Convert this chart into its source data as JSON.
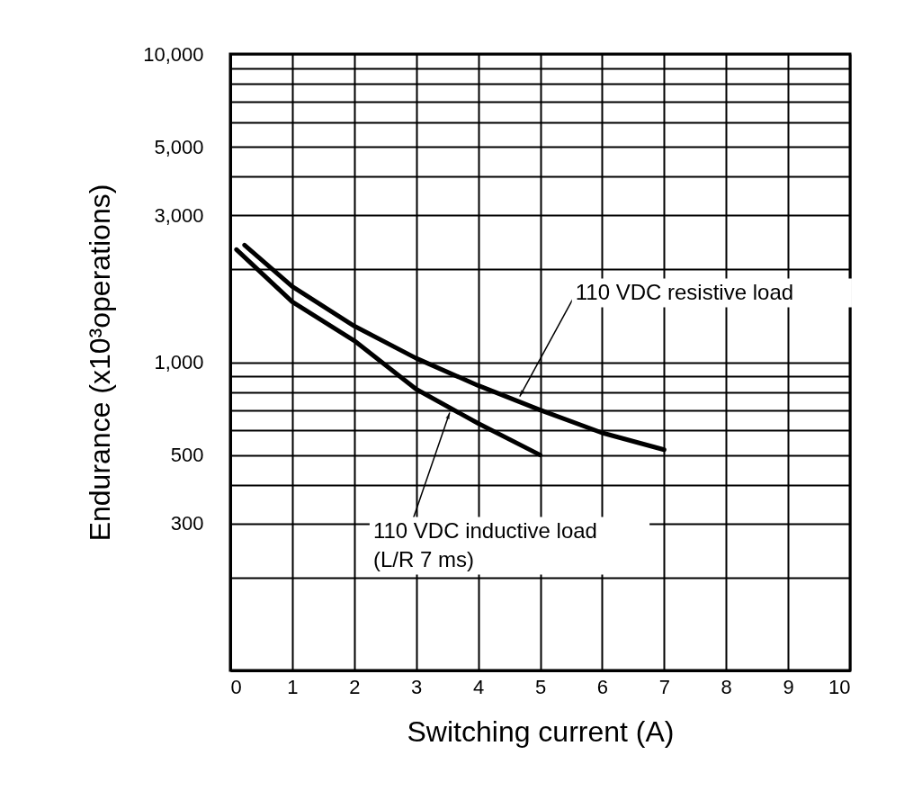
{
  "chart_data": {
    "type": "line",
    "xlabel": "Switching current (A)",
    "ylabel": "Endurance (x10³operations)",
    "xlim": [
      0,
      10
    ],
    "xticks": [
      0,
      1,
      2,
      3,
      4,
      5,
      6,
      7,
      8,
      9,
      10
    ],
    "ylim": [
      100,
      10000
    ],
    "log": true,
    "grid": true,
    "marker": "none",
    "line_style": "solid",
    "yticks": [
      {
        "value": 100,
        "label": null
      },
      {
        "value": 200,
        "label": null
      },
      {
        "value": 300,
        "label": "300"
      },
      {
        "value": 400,
        "label": null
      },
      {
        "value": 500,
        "label": "500"
      },
      {
        "value": 600,
        "label": null
      },
      {
        "value": 700,
        "label": null
      },
      {
        "value": 800,
        "label": null
      },
      {
        "value": 900,
        "label": null
      },
      {
        "value": 1000,
        "label": "1,000"
      },
      {
        "value": 2000,
        "label": null
      },
      {
        "value": 3000,
        "label": "3,000"
      },
      {
        "value": 4000,
        "label": null
      },
      {
        "value": 5000,
        "label": "5,000"
      },
      {
        "value": 6000,
        "label": null
      },
      {
        "value": 7000,
        "label": null
      },
      {
        "value": 8000,
        "label": null
      },
      {
        "value": 9000,
        "label": null
      },
      {
        "value": 10000,
        "label": "10,000"
      }
    ],
    "series": [
      {
        "color": "#000000",
        "x": [
          0.23,
          1,
          2,
          3,
          4,
          5,
          6,
          7
        ],
        "values": [
          2400,
          1760,
          1310,
          1030,
          840,
          700,
          590,
          520
        ]
      },
      {
        "color": "#000000",
        "x": [
          0.1,
          1,
          2,
          3,
          4,
          5
        ],
        "values": [
          2320,
          1570,
          1175,
          817,
          633,
          500
        ]
      }
    ],
    "annotations": [
      {
        "text": "110 VDC resistive load",
        "x": 4.67,
        "y": 774
      },
      {
        "text": "110 VDC inductive load\n(L/R 7 ms)",
        "x": 3.54,
        "y": 686
      }
    ]
  }
}
